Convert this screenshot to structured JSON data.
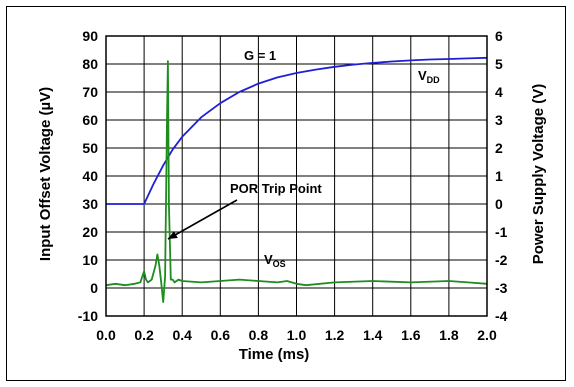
{
  "chart_data": {
    "type": "line",
    "xlabel": "Time (ms)",
    "ylabel_left": "Input Offset Voltage (µV)",
    "ylabel_right": "Power Supply Voltage (V)",
    "x_range": [
      0.0,
      2.0
    ],
    "y_left_range": [
      -10,
      90
    ],
    "y_right_range": [
      -4,
      6
    ],
    "grid": true,
    "x_ticks": [
      "0.0",
      "0.2",
      "0.4",
      "0.6",
      "0.8",
      "1.0",
      "1.2",
      "1.4",
      "1.6",
      "1.8",
      "2.0"
    ],
    "y_left_ticks": [
      "90",
      "80",
      "70",
      "60",
      "50",
      "40",
      "30",
      "20",
      "10",
      "0",
      "-10"
    ],
    "y_right_ticks": [
      "6",
      "5",
      "4",
      "3",
      "2",
      "1",
      "0",
      "-1",
      "-2",
      "-3",
      "-4"
    ],
    "annotations": {
      "gain": "G = 1",
      "por": "POR Trip Point",
      "vdd_main": "V",
      "vdd_sub": "DD",
      "vos_main": "V",
      "vos_sub": "OS"
    },
    "series": [
      {
        "name": "VDD",
        "axis": "right",
        "color": "#1f1fd6",
        "x": [
          0.0,
          0.2,
          0.25,
          0.3,
          0.35,
          0.4,
          0.5,
          0.6,
          0.7,
          0.8,
          0.9,
          1.0,
          1.1,
          1.2,
          1.3,
          1.4,
          1.5,
          1.6,
          1.7,
          1.8,
          1.9,
          2.0
        ],
        "y": [
          0.0,
          0.0,
          0.72,
          1.38,
          1.95,
          2.4,
          3.1,
          3.6,
          4.0,
          4.3,
          4.52,
          4.68,
          4.8,
          4.9,
          4.98,
          5.04,
          5.09,
          5.13,
          5.16,
          5.18,
          5.2,
          5.22
        ]
      },
      {
        "name": "VOS",
        "axis": "left",
        "color": "#1e8c1e",
        "x": [
          0.0,
          0.05,
          0.1,
          0.15,
          0.18,
          0.2,
          0.21,
          0.22,
          0.24,
          0.26,
          0.27,
          0.28,
          0.29,
          0.3,
          0.31,
          0.32,
          0.325,
          0.33,
          0.34,
          0.35,
          0.36,
          0.38,
          0.4,
          0.5,
          0.6,
          0.7,
          0.8,
          0.9,
          0.95,
          1.0,
          1.05,
          1.2,
          1.4,
          1.6,
          1.8,
          1.9,
          2.0
        ],
        "y": [
          1,
          1.5,
          1,
          1.5,
          2,
          6,
          3,
          2,
          3,
          8,
          12,
          8,
          2,
          -5,
          4,
          60,
          81,
          30,
          3,
          3,
          2,
          3,
          2.5,
          2,
          2.5,
          3,
          2.5,
          2,
          2.5,
          1.5,
          1,
          2,
          2.5,
          2,
          2.5,
          2,
          1.5
        ]
      }
    ]
  }
}
